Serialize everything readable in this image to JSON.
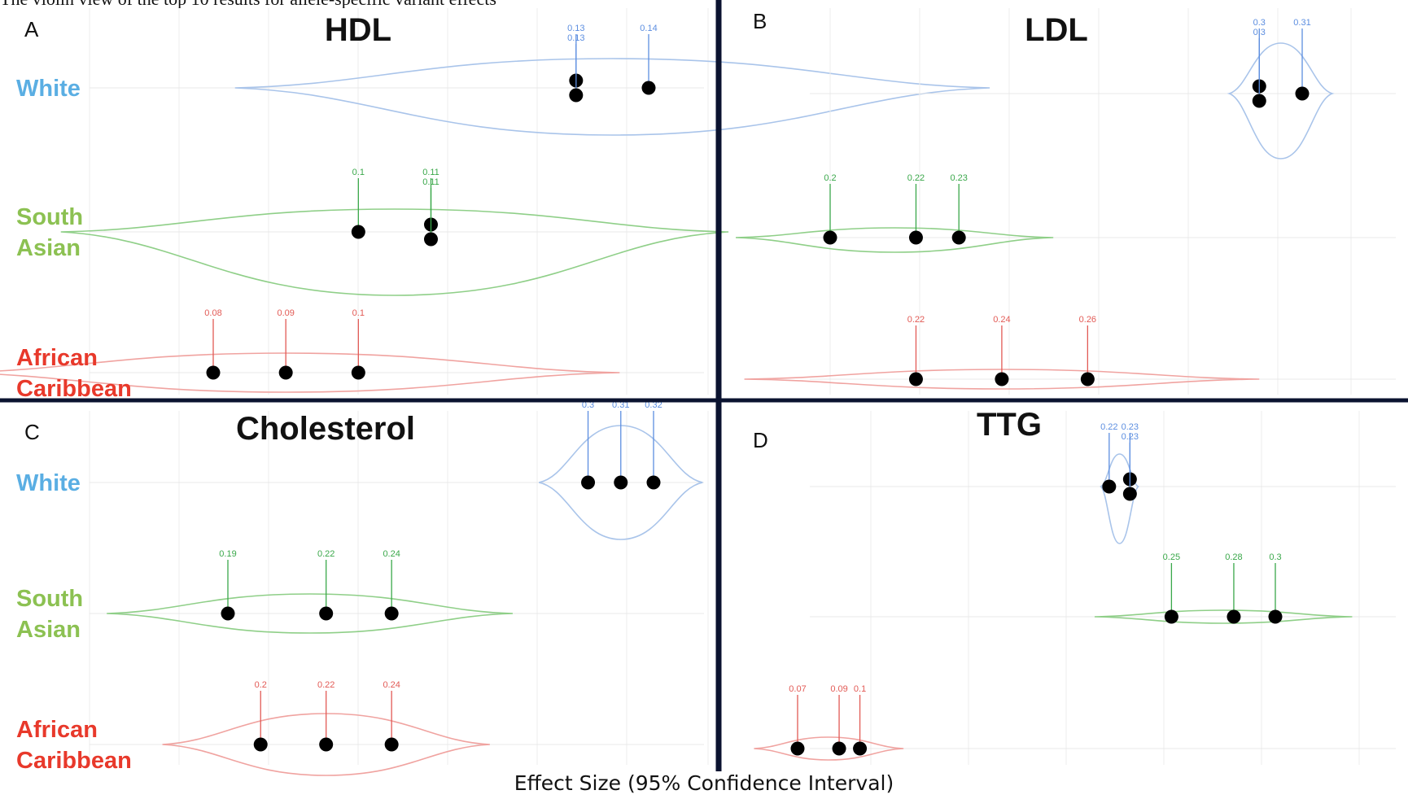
{
  "caption_fragment": "The violin view of the top 10 results for allele-specific variant effects",
  "xlabel": "Effect Size (95% Confidence Interval)",
  "colors": {
    "White": "#5aaee3",
    "South Asian": "#8cc152",
    "African Caribbean": "#e8392b",
    "white_curve": "#a9c4ea",
    "sa_curve": "#8fcf88",
    "ac_curve": "#f0a3a0",
    "white_num": "#5c8ee0",
    "sa_num": "#3aa84a",
    "ac_num": "#e25a55",
    "dot": "#000000",
    "divider": "#0b1330"
  },
  "chart_data": [
    {
      "panel": "A",
      "title": "HDL",
      "type": "violin",
      "groups": [
        {
          "name": "White",
          "label_lines": [
            "White"
          ],
          "values": [
            0.13,
            0.13,
            0.14
          ]
        },
        {
          "name": "South Asian",
          "label_lines": [
            "South",
            "Asian"
          ],
          "values": [
            0.1,
            0.11,
            0.11
          ]
        },
        {
          "name": "African Caribbean",
          "label_lines": [
            "African",
            "Caribbean"
          ],
          "values": [
            0.08,
            0.09,
            0.1
          ]
        }
      ]
    },
    {
      "panel": "B",
      "title": "LDL",
      "type": "violin",
      "groups": [
        {
          "name": "White",
          "label_lines": [],
          "values": [
            0.3,
            0.3,
            0.31
          ]
        },
        {
          "name": "South Asian",
          "label_lines": [],
          "values": [
            0.2,
            0.22,
            0.23
          ]
        },
        {
          "name": "African Caribbean",
          "label_lines": [],
          "values": [
            0.22,
            0.24,
            0.26
          ]
        }
      ]
    },
    {
      "panel": "C",
      "title": "Cholesterol",
      "type": "violin",
      "groups": [
        {
          "name": "White",
          "label_lines": [
            "White"
          ],
          "values": [
            0.3,
            0.31,
            0.32
          ]
        },
        {
          "name": "South Asian",
          "label_lines": [
            "South",
            "Asian"
          ],
          "values": [
            0.19,
            0.22,
            0.24
          ]
        },
        {
          "name": "African Caribbean",
          "label_lines": [
            "African",
            "Caribbean"
          ],
          "values": [
            0.2,
            0.22,
            0.24
          ]
        }
      ]
    },
    {
      "panel": "D",
      "title": "TTG",
      "type": "violin",
      "groups": [
        {
          "name": "White",
          "label_lines": [],
          "values": [
            0.22,
            0.23,
            0.23
          ]
        },
        {
          "name": "South Asian",
          "label_lines": [],
          "values": [
            0.25,
            0.28,
            0.3
          ]
        },
        {
          "name": "African Caribbean",
          "label_lines": [],
          "values": [
            0.07,
            0.09,
            0.1
          ]
        }
      ]
    }
  ]
}
